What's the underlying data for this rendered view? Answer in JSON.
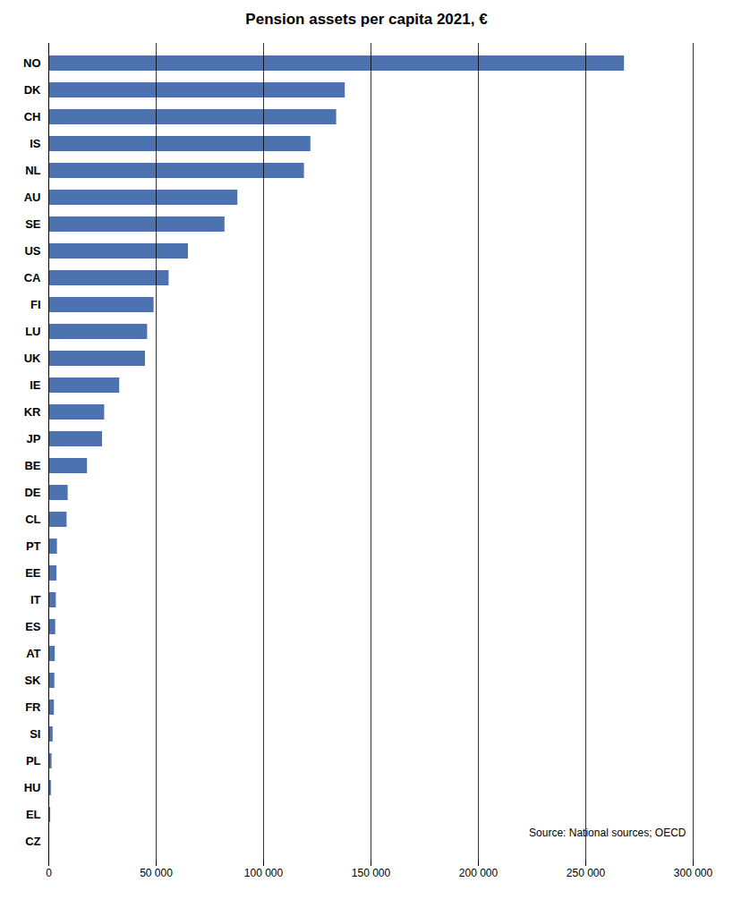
{
  "chart_data": {
    "type": "bar",
    "orientation": "horizontal",
    "title": "Pension assets per capita 2021, €",
    "categories": [
      "NO",
      "DK",
      "CH",
      "IS",
      "NL",
      "AU",
      "SE",
      "US",
      "CA",
      "FI",
      "LU",
      "UK",
      "IE",
      "KR",
      "JP",
      "BE",
      "DE",
      "CL",
      "PT",
      "EE",
      "IT",
      "ES",
      "AT",
      "SK",
      "FR",
      "SI",
      "PL",
      "HU",
      "EL",
      "CZ"
    ],
    "values": [
      268000,
      138000,
      134000,
      122000,
      119000,
      88000,
      82000,
      65000,
      56000,
      49000,
      46000,
      45000,
      33000,
      26000,
      25000,
      18000,
      9000,
      8500,
      4000,
      3800,
      3500,
      3200,
      3000,
      2800,
      2600,
      2000,
      1500,
      1200,
      900,
      200
    ],
    "color": "#4C72B0",
    "xlim": [
      0,
      300000
    ],
    "xticks": [
      0,
      {
        "value": 50000,
        "label": "50 000"
      },
      {
        "value": 100000,
        "label": "100 000"
      },
      {
        "value": 150000,
        "label": "150 000"
      },
      {
        "value": 200000,
        "label": "200 000"
      },
      {
        "value": 250000,
        "label": "250 000"
      },
      {
        "value": 300000,
        "label": "300 000"
      }
    ],
    "grid": true,
    "annotation": "Source: National sources; OECD"
  }
}
